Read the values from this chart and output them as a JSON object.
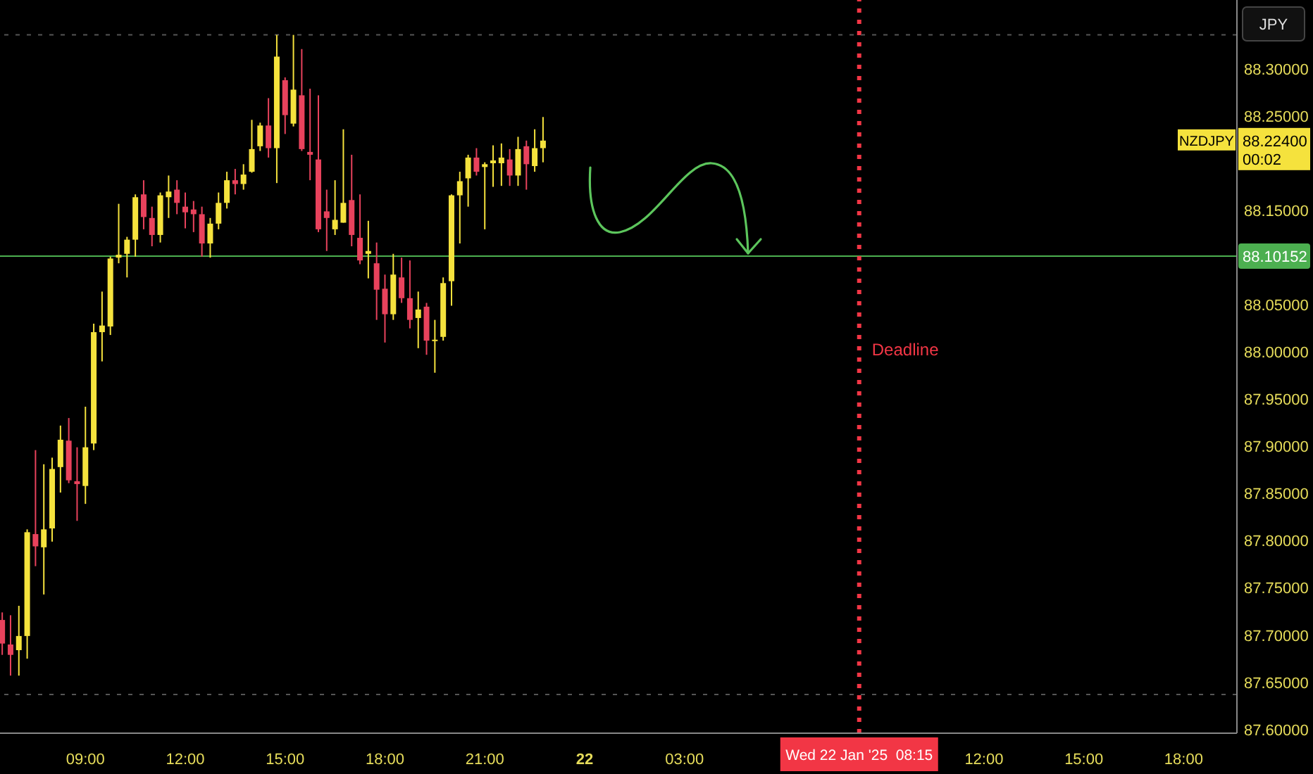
{
  "chart_data": {
    "type": "candlestick",
    "x": [
      "2025-01-21T06:30",
      "2025-01-21T06:45",
      "2025-01-21T07:00",
      "2025-01-21T07:15",
      "2025-01-21T07:30",
      "2025-01-21T07:45",
      "2025-01-21T08:00",
      "2025-01-21T08:15",
      "2025-01-21T08:30",
      "2025-01-21T08:45",
      "2025-01-21T09:00",
      "2025-01-21T09:15",
      "2025-01-21T09:30",
      "2025-01-21T09:45",
      "2025-01-21T10:00",
      "2025-01-21T10:15",
      "2025-01-21T10:30",
      "2025-01-21T10:45",
      "2025-01-21T11:00",
      "2025-01-21T11:15",
      "2025-01-21T11:30",
      "2025-01-21T11:45",
      "2025-01-21T12:00",
      "2025-01-21T12:15",
      "2025-01-21T12:30",
      "2025-01-21T12:45",
      "2025-01-21T13:00",
      "2025-01-21T13:15",
      "2025-01-21T13:30",
      "2025-01-21T13:45",
      "2025-01-21T14:00",
      "2025-01-21T14:15",
      "2025-01-21T14:30",
      "2025-01-21T14:45",
      "2025-01-21T15:00",
      "2025-01-21T15:15",
      "2025-01-21T15:30",
      "2025-01-21T15:45",
      "2025-01-21T16:00",
      "2025-01-21T16:15",
      "2025-01-21T16:30",
      "2025-01-21T16:45",
      "2025-01-21T17:00",
      "2025-01-21T17:15",
      "2025-01-21T17:30",
      "2025-01-21T17:45",
      "2025-01-21T18:00",
      "2025-01-21T18:15",
      "2025-01-21T18:30",
      "2025-01-21T18:45",
      "2025-01-21T19:00",
      "2025-01-21T19:15",
      "2025-01-21T19:30",
      "2025-01-21T19:45",
      "2025-01-21T20:00",
      "2025-01-21T20:15",
      "2025-01-21T20:30",
      "2025-01-21T20:45",
      "2025-01-21T21:00",
      "2025-01-21T21:15",
      "2025-01-21T21:30",
      "2025-01-21T21:45",
      "2025-01-21T22:00",
      "2025-01-21T22:15",
      "2025-01-21T22:30",
      "2025-01-21T22:45"
    ],
    "ohlc": [
      [
        87.716,
        87.724,
        87.679,
        87.691
      ],
      [
        87.69,
        87.721,
        87.657,
        87.679
      ],
      [
        87.684,
        87.731,
        87.657,
        87.699
      ],
      [
        87.699,
        87.812,
        87.675,
        87.809
      ],
      [
        87.807,
        87.896,
        87.773,
        87.794
      ],
      [
        87.793,
        87.881,
        87.743,
        87.812
      ],
      [
        87.813,
        87.888,
        87.799,
        87.876
      ],
      [
        87.878,
        87.922,
        87.851,
        87.907
      ],
      [
        87.906,
        87.93,
        87.861,
        87.864
      ],
      [
        87.863,
        87.899,
        87.821,
        87.86
      ],
      [
        87.858,
        87.942,
        87.839,
        87.899
      ],
      [
        87.903,
        88.03,
        87.896,
        88.021
      ],
      [
        88.021,
        88.064,
        87.99,
        88.028
      ],
      [
        88.027,
        88.101,
        88.018,
        88.099
      ],
      [
        88.1,
        88.157,
        88.094,
        88.103
      ],
      [
        88.104,
        88.122,
        88.079,
        88.119
      ],
      [
        88.119,
        88.167,
        88.101,
        88.164
      ],
      [
        88.167,
        88.182,
        88.13,
        88.143
      ],
      [
        88.142,
        88.154,
        88.112,
        88.124
      ],
      [
        88.124,
        88.169,
        88.116,
        88.166
      ],
      [
        88.164,
        88.187,
        88.142,
        88.17
      ],
      [
        88.172,
        88.182,
        88.146,
        88.158
      ],
      [
        88.154,
        88.169,
        88.131,
        88.148
      ],
      [
        88.151,
        88.16,
        88.127,
        88.146
      ],
      [
        88.146,
        88.154,
        88.101,
        88.115
      ],
      [
        88.115,
        88.142,
        88.1,
        88.136
      ],
      [
        88.136,
        88.169,
        88.13,
        88.158
      ],
      [
        88.158,
        88.191,
        88.152,
        88.182
      ],
      [
        88.182,
        88.194,
        88.167,
        88.178
      ],
      [
        88.178,
        88.199,
        88.172,
        88.188
      ],
      [
        88.191,
        88.246,
        88.19,
        88.215
      ],
      [
        88.218,
        88.243,
        88.213,
        88.24
      ],
      [
        88.24,
        88.269,
        88.206,
        88.216
      ],
      [
        88.216,
        88.336,
        88.179,
        88.313
      ],
      [
        88.288,
        88.291,
        88.231,
        88.251
      ],
      [
        88.242,
        88.336,
        88.239,
        88.278
      ],
      [
        88.272,
        88.321,
        88.213,
        88.215
      ],
      [
        88.212,
        88.279,
        88.182,
        88.209
      ],
      [
        88.204,
        88.272,
        88.127,
        88.13
      ],
      [
        88.149,
        88.172,
        88.107,
        88.142
      ],
      [
        88.13,
        88.182,
        88.124,
        88.14
      ],
      [
        88.137,
        88.236,
        88.137,
        88.158
      ],
      [
        88.161,
        88.209,
        88.112,
        88.124
      ],
      [
        88.121,
        88.167,
        88.093,
        88.097
      ],
      [
        88.104,
        88.139,
        88.078,
        88.107
      ],
      [
        88.094,
        88.116,
        88.034,
        88.066
      ],
      [
        88.067,
        88.082,
        88.01,
        88.04
      ],
      [
        88.04,
        88.104,
        88.034,
        88.082
      ],
      [
        88.079,
        88.1,
        88.052,
        88.057
      ],
      [
        88.057,
        88.097,
        88.025,
        88.034
      ],
      [
        88.036,
        88.064,
        88.004,
        88.045
      ],
      [
        88.048,
        88.052,
        87.997,
        88.012
      ],
      [
        88.012,
        88.034,
        87.978,
        88.013
      ],
      [
        88.016,
        88.079,
        88.012,
        88.073
      ],
      [
        88.075,
        88.167,
        88.049,
        88.166
      ],
      [
        88.166,
        88.191,
        88.115,
        88.181
      ],
      [
        88.184,
        88.209,
        88.154,
        88.206
      ],
      [
        88.206,
        88.216,
        88.187,
        88.191
      ],
      [
        88.196,
        88.201,
        88.13,
        88.199
      ],
      [
        88.2,
        88.219,
        88.175,
        88.203
      ],
      [
        88.2,
        88.221,
        88.176,
        88.206
      ],
      [
        88.204,
        88.215,
        88.176,
        88.187
      ],
      [
        88.187,
        88.228,
        88.176,
        88.215
      ],
      [
        88.218,
        88.224,
        88.172,
        88.199
      ],
      [
        88.197,
        88.236,
        88.191,
        88.216
      ],
      [
        88.216,
        88.249,
        88.201,
        88.224
      ]
    ],
    "colors": [
      "#e8425c",
      "#e8425c",
      "#f5e23d",
      "#f5e23d",
      "#e8425c",
      "#f5e23d",
      "#f5e23d",
      "#f5e23d",
      "#e8425c",
      "#e8425c",
      "#f5e23d",
      "#f5e23d",
      "#f5e23d",
      "#f5e23d",
      "#f5e23d",
      "#f5e23d",
      "#f5e23d",
      "#e8425c",
      "#e8425c",
      "#f5e23d",
      "#f5e23d",
      "#e8425c",
      "#e8425c",
      "#e8425c",
      "#e8425c",
      "#f5e23d",
      "#f5e23d",
      "#f5e23d",
      "#e8425c",
      "#f5e23d",
      "#f5e23d",
      "#f5e23d",
      "#e8425c",
      "#f5e23d",
      "#e8425c",
      "#f5e23d",
      "#e8425c",
      "#e8425c",
      "#e8425c",
      "#e8425c",
      "#f5e23d",
      "#f5e23d",
      "#e8425c",
      "#e8425c",
      "#f5e23d",
      "#e8425c",
      "#e8425c",
      "#f5e23d",
      "#e8425c",
      "#e8425c",
      "#f5e23d",
      "#e8425c",
      "#f5e23d",
      "#f5e23d",
      "#f5e23d",
      "#f5e23d",
      "#f5e23d",
      "#e8425c",
      "#f5e23d",
      "#f5e23d",
      "#f5e23d",
      "#e8425c",
      "#f5e23d",
      "#e8425c",
      "#f5e23d",
      "#f5e23d"
    ],
    "xlim": [
      "2025-01-21T06:26",
      "2025-01-22T19:36"
    ],
    "xticks": [
      {
        "value": "2025-01-21T09:00",
        "label": "09:00"
      },
      {
        "value": "2025-01-21T12:00",
        "label": "12:00"
      },
      {
        "value": "2025-01-21T15:00",
        "label": "15:00"
      },
      {
        "value": "2025-01-21T18:00",
        "label": "18:00"
      },
      {
        "value": "2025-01-21T21:00",
        "label": "21:00"
      },
      {
        "value": "2025-01-22T00:00",
        "label": "22"
      },
      {
        "value": "2025-01-22T03:00",
        "label": "03:00"
      },
      {
        "value": "2025-01-22T12:00",
        "label": "12:00"
      },
      {
        "value": "2025-01-22T15:00",
        "label": "15:00"
      },
      {
        "value": "2025-01-22T18:00",
        "label": "18:00"
      }
    ],
    "ylim": [
      87.596,
      88.373
    ],
    "yticks": [
      {
        "value": 87.6,
        "label": "87.60000"
      },
      {
        "value": 87.65,
        "label": "87.65000"
      },
      {
        "value": 87.7,
        "label": "87.70000"
      },
      {
        "value": 87.75,
        "label": "87.75000"
      },
      {
        "value": 87.8,
        "label": "87.80000"
      },
      {
        "value": 87.85,
        "label": "87.85000"
      },
      {
        "value": 87.9,
        "label": "87.90000"
      },
      {
        "value": 87.95,
        "label": "87.95000"
      },
      {
        "value": 88,
        "label": "88.00000"
      },
      {
        "value": 88.05,
        "label": "88.05000"
      },
      {
        "value": 88.15,
        "label": "88.15000"
      },
      {
        "value": 88.25,
        "label": "88.25000"
      },
      {
        "value": 88.3,
        "label": "88.30000"
      }
    ],
    "ref_lines": [
      {
        "axis": "y",
        "value": 88.10152,
        "label": "88.10152",
        "color": "#4caf50",
        "line_style": "solid"
      },
      {
        "axis": "x",
        "value": "2025-01-22T08:15",
        "label": "Deadline",
        "color": "#f23645",
        "line_style": "dotted"
      },
      {
        "axis": "y",
        "value": 88.336,
        "color": "#555555",
        "line_style": "dotted"
      },
      {
        "axis": "y",
        "value": 87.637,
        "color": "#555555",
        "line_style": "dotted"
      }
    ],
    "annotations": [
      "NZDJPY",
      "88.22400",
      "00:02",
      "JPY",
      "Wed 22 Jan '25  08:15"
    ]
  }
}
